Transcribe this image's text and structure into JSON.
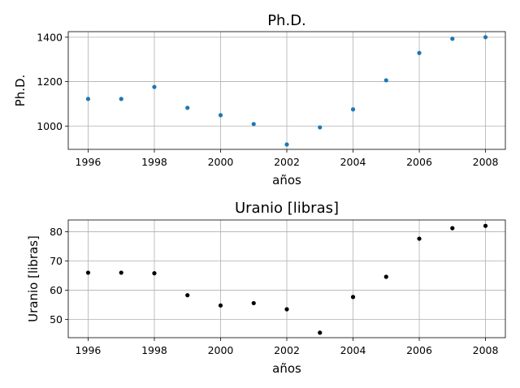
{
  "chart_data": [
    {
      "type": "scatter",
      "title": "Ph.D.",
      "xlabel": "años",
      "ylabel": "Ph.D.",
      "xlim": [
        1995.4,
        2008.6
      ],
      "ylim": [
        895,
        1425
      ],
      "xticks": [
        "1996",
        "1998",
        "2000",
        "2002",
        "2004",
        "2006",
        "2008"
      ],
      "yticks": [
        "1000",
        "1200",
        "1400"
      ],
      "grid": true,
      "series": [
        {
          "color": "#1f77b4",
          "x": [
            1996,
            1997,
            1998,
            1999,
            2000,
            2001,
            2002,
            2003,
            2004,
            2005,
            2006,
            2007,
            2008
          ],
          "y": [
            1122,
            1122,
            1176,
            1082,
            1049,
            1009,
            917,
            994,
            1075,
            1206,
            1329,
            1393,
            1400
          ]
        }
      ]
    },
    {
      "type": "scatter",
      "title": "Uranio [libras]",
      "xlabel": "años",
      "ylabel": "Uranio [libras]",
      "xlim": [
        1995.4,
        2008.6
      ],
      "ylim": [
        43.8,
        84
      ],
      "xticks": [
        "1996",
        "1998",
        "2000",
        "2002",
        "2004",
        "2006",
        "2008"
      ],
      "yticks": [
        "50",
        "60",
        "70",
        "80"
      ],
      "grid": true,
      "series": [
        {
          "color": "#000000",
          "x": [
            1996,
            1997,
            1998,
            1999,
            2000,
            2001,
            2002,
            2003,
            2004,
            2005,
            2006,
            2007,
            2008
          ],
          "y": [
            66,
            66,
            65.8,
            58.3,
            54.8,
            55.6,
            53.5,
            45.5,
            57.7,
            64.6,
            77.6,
            81.2,
            82
          ]
        }
      ]
    }
  ]
}
